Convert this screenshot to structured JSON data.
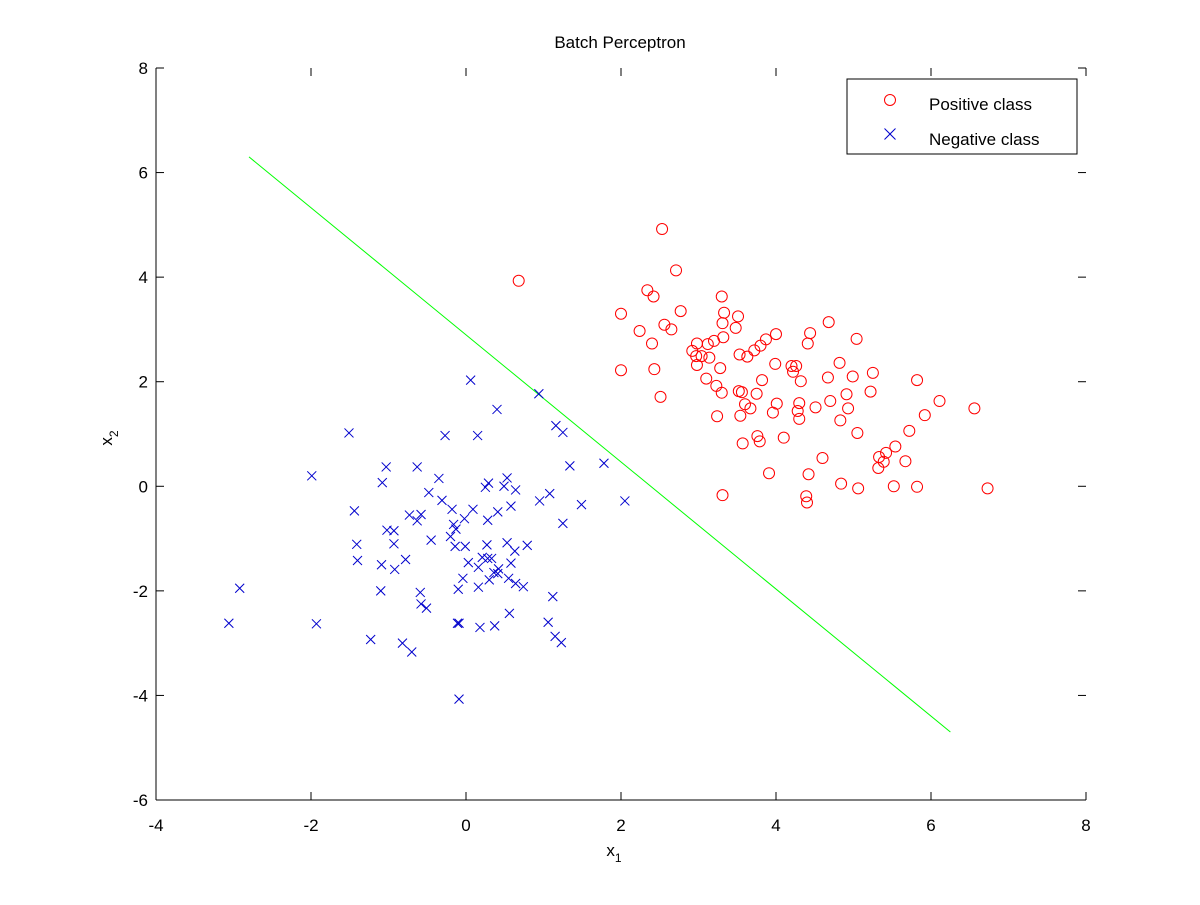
{
  "chart_data": {
    "type": "scatter",
    "title": "Batch Perceptron",
    "xlabel": {
      "base": "x",
      "sub": "1"
    },
    "ylabel": {
      "base": "x",
      "sub": "2"
    },
    "xlim": [
      -4,
      8
    ],
    "ylim": [
      -6,
      8
    ],
    "xticks": [
      -4,
      -2,
      0,
      2,
      4,
      6,
      8
    ],
    "yticks": [
      -6,
      -4,
      -2,
      0,
      2,
      4,
      6,
      8
    ],
    "grid": false,
    "legend_position": "top-right",
    "series": [
      {
        "name": "Positive class",
        "marker": "circle",
        "color": "#ff0000",
        "points": [
          [
            0.68,
            3.93
          ],
          [
            2.53,
            4.92
          ],
          [
            2.71,
            4.13
          ],
          [
            2.34,
            3.75
          ],
          [
            2.42,
            3.63
          ],
          [
            3.3,
            3.63
          ],
          [
            2.0,
            3.3
          ],
          [
            2.77,
            3.35
          ],
          [
            3.33,
            3.32
          ],
          [
            3.51,
            3.25
          ],
          [
            2.24,
            2.97
          ],
          [
            2.56,
            3.09
          ],
          [
            2.65,
            3.0
          ],
          [
            3.31,
            3.12
          ],
          [
            3.48,
            3.03
          ],
          [
            2.4,
            2.73
          ],
          [
            2.98,
            2.73
          ],
          [
            3.12,
            2.72
          ],
          [
            3.2,
            2.78
          ],
          [
            3.32,
            2.85
          ],
          [
            2.92,
            2.59
          ],
          [
            2.97,
            2.49
          ],
          [
            3.04,
            2.49
          ],
          [
            3.14,
            2.46
          ],
          [
            3.53,
            2.52
          ],
          [
            3.63,
            2.48
          ],
          [
            3.72,
            2.6
          ],
          [
            3.8,
            2.69
          ],
          [
            3.87,
            2.81
          ],
          [
            4.0,
            2.91
          ],
          [
            4.44,
            2.93
          ],
          [
            4.68,
            3.14
          ],
          [
            5.04,
            2.82
          ],
          [
            2.43,
            2.24
          ],
          [
            2.98,
            2.32
          ],
          [
            3.28,
            2.26
          ],
          [
            3.99,
            2.34
          ],
          [
            4.2,
            2.3
          ],
          [
            4.26,
            2.3
          ],
          [
            4.22,
            2.19
          ],
          [
            4.41,
            2.73
          ],
          [
            4.82,
            2.36
          ],
          [
            4.99,
            2.1
          ],
          [
            5.25,
            2.17
          ],
          [
            5.82,
            2.03
          ],
          [
            2.0,
            2.22
          ],
          [
            3.1,
            2.06
          ],
          [
            3.23,
            1.92
          ],
          [
            3.3,
            1.79
          ],
          [
            3.82,
            2.03
          ],
          [
            4.32,
            2.01
          ],
          [
            4.67,
            2.08
          ],
          [
            2.51,
            1.71
          ],
          [
            3.52,
            1.82
          ],
          [
            3.56,
            1.8
          ],
          [
            3.75,
            1.77
          ],
          [
            4.3,
            1.59
          ],
          [
            4.91,
            1.76
          ],
          [
            5.22,
            1.81
          ],
          [
            6.11,
            1.63
          ],
          [
            6.56,
            1.49
          ],
          [
            3.6,
            1.57
          ],
          [
            3.67,
            1.49
          ],
          [
            4.01,
            1.58
          ],
          [
            4.28,
            1.44
          ],
          [
            4.51,
            1.51
          ],
          [
            4.7,
            1.63
          ],
          [
            4.93,
            1.49
          ],
          [
            5.92,
            1.36
          ],
          [
            3.24,
            1.34
          ],
          [
            3.54,
            1.35
          ],
          [
            3.96,
            1.41
          ],
          [
            4.3,
            1.29
          ],
          [
            4.83,
            1.26
          ],
          [
            5.05,
            1.02
          ],
          [
            5.72,
            1.06
          ],
          [
            3.57,
            0.82
          ],
          [
            3.76,
            0.96
          ],
          [
            3.79,
            0.86
          ],
          [
            4.1,
            0.93
          ],
          [
            5.54,
            0.76
          ],
          [
            4.6,
            0.54
          ],
          [
            5.33,
            0.56
          ],
          [
            5.42,
            0.64
          ],
          [
            5.39,
            0.47
          ],
          [
            5.32,
            0.35
          ],
          [
            5.67,
            0.48
          ],
          [
            3.91,
            0.25
          ],
          [
            4.42,
            0.23
          ],
          [
            4.84,
            0.05
          ],
          [
            5.06,
            -0.04
          ],
          [
            5.52,
            0.0
          ],
          [
            5.82,
            -0.01
          ],
          [
            6.73,
            -0.04
          ],
          [
            3.31,
            -0.17
          ],
          [
            4.39,
            -0.19
          ],
          [
            4.4,
            -0.31
          ]
        ]
      },
      {
        "name": "Negative class",
        "marker": "x",
        "color": "#0000cc",
        "points": [
          [
            0.06,
            2.03
          ],
          [
            0.4,
            1.47
          ],
          [
            0.94,
            1.77
          ],
          [
            -1.51,
            1.02
          ],
          [
            -0.27,
            0.97
          ],
          [
            0.15,
            0.97
          ],
          [
            1.16,
            1.16
          ],
          [
            1.25,
            1.03
          ],
          [
            -1.99,
            0.2
          ],
          [
            -1.03,
            0.37
          ],
          [
            -0.63,
            0.37
          ],
          [
            -0.35,
            0.15
          ],
          [
            -1.08,
            0.07
          ],
          [
            0.25,
            -0.02
          ],
          [
            0.29,
            0.06
          ],
          [
            0.53,
            0.16
          ],
          [
            0.49,
            0.0
          ],
          [
            0.64,
            -0.07
          ],
          [
            1.34,
            0.39
          ],
          [
            1.78,
            0.44
          ],
          [
            -0.48,
            -0.12
          ],
          [
            -0.31,
            -0.27
          ],
          [
            0.95,
            -0.28
          ],
          [
            1.08,
            -0.14
          ],
          [
            1.49,
            -0.35
          ],
          [
            2.05,
            -0.28
          ],
          [
            -1.44,
            -0.47
          ],
          [
            -0.73,
            -0.55
          ],
          [
            -0.58,
            -0.54
          ],
          [
            -0.63,
            -0.66
          ],
          [
            -0.18,
            -0.44
          ],
          [
            0.09,
            -0.44
          ],
          [
            0.41,
            -0.49
          ],
          [
            0.58,
            -0.38
          ],
          [
            -0.02,
            -0.62
          ],
          [
            0.28,
            -0.65
          ],
          [
            1.25,
            -0.71
          ],
          [
            -1.02,
            -0.84
          ],
          [
            -0.93,
            -0.85
          ],
          [
            -0.16,
            -0.73
          ],
          [
            -0.13,
            -0.82
          ],
          [
            -0.2,
            -0.96
          ],
          [
            -0.45,
            -1.03
          ],
          [
            -0.14,
            -1.15
          ],
          [
            -0.01,
            -1.15
          ],
          [
            0.27,
            -1.12
          ],
          [
            0.53,
            -1.08
          ],
          [
            0.79,
            -1.13
          ],
          [
            -1.41,
            -1.11
          ],
          [
            -0.93,
            -1.1
          ],
          [
            0.63,
            -1.24
          ],
          [
            0.21,
            -1.36
          ],
          [
            0.28,
            -1.38
          ],
          [
            0.33,
            -1.38
          ],
          [
            0.03,
            -1.46
          ],
          [
            -1.4,
            -1.42
          ],
          [
            -0.78,
            -1.4
          ],
          [
            0.16,
            -1.55
          ],
          [
            0.42,
            -1.58
          ],
          [
            0.58,
            -1.47
          ],
          [
            0.36,
            -1.65
          ],
          [
            0.41,
            -1.67
          ],
          [
            0.3,
            -1.79
          ],
          [
            -1.09,
            -1.5
          ],
          [
            -0.92,
            -1.59
          ],
          [
            -0.04,
            -1.76
          ],
          [
            0.55,
            -1.76
          ],
          [
            0.64,
            -1.86
          ],
          [
            0.74,
            -1.92
          ],
          [
            -3.06,
            -2.62
          ],
          [
            -2.92,
            -1.95
          ],
          [
            -1.1,
            -2.0
          ],
          [
            -0.59,
            -2.03
          ],
          [
            -0.58,
            -2.25
          ],
          [
            -0.51,
            -2.33
          ],
          [
            -0.1,
            -1.97
          ],
          [
            0.16,
            -1.93
          ],
          [
            1.12,
            -2.11
          ],
          [
            0.56,
            -2.43
          ],
          [
            1.06,
            -2.6
          ],
          [
            -1.93,
            -2.63
          ],
          [
            -0.11,
            -2.62
          ],
          [
            -0.09,
            -2.62
          ],
          [
            0.18,
            -2.7
          ],
          [
            0.37,
            -2.67
          ],
          [
            -1.23,
            -2.93
          ],
          [
            -0.82,
            -3.0
          ],
          [
            -0.7,
            -3.17
          ],
          [
            1.15,
            -2.87
          ],
          [
            1.23,
            -2.99
          ],
          [
            -0.09,
            -4.07
          ]
        ]
      }
    ],
    "decision_boundary": {
      "color": "#00ff00",
      "from": [
        -2.8,
        6.3
      ],
      "to": [
        6.25,
        -4.7
      ]
    }
  },
  "legend": {
    "items": [
      {
        "label": "Positive class",
        "marker": "circle",
        "color": "#ff0000"
      },
      {
        "label": "Negative class",
        "marker": "x",
        "color": "#0000cc"
      }
    ]
  }
}
